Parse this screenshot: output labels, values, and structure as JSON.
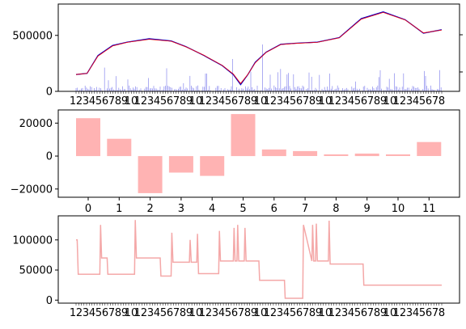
{
  "chart_data": [
    {
      "type": "line",
      "title": "",
      "xlabel": "",
      "ylabel": "",
      "ylim": [
        0,
        780000
      ],
      "y_ticks": [
        0,
        500000
      ],
      "x_tick_labels": [
        "1",
        "2",
        "3",
        "4",
        "5",
        "6",
        "7",
        "8",
        "9",
        "10"
      ],
      "series": [
        {
          "kind": "line",
          "color": "#0000cc",
          "x": [
            0,
            0.03,
            0.06,
            0.1,
            0.14,
            0.2,
            0.26,
            0.3,
            0.35,
            0.4,
            0.43,
            0.45,
            0.47,
            0.49,
            0.52,
            0.56,
            0.6,
            0.66,
            0.72,
            0.78,
            0.84,
            0.9,
            0.95,
            1.0
          ],
          "values": [
            150000,
            160000,
            320000,
            410000,
            440000,
            470000,
            450000,
            400000,
            320000,
            230000,
            150000,
            60000,
            150000,
            260000,
            350000,
            420000,
            430000,
            440000,
            480000,
            650000,
            710000,
            640000,
            520000,
            550000
          ]
        },
        {
          "kind": "line",
          "color": "#ff0000",
          "x": [
            0,
            0.03,
            0.06,
            0.1,
            0.14,
            0.2,
            0.26,
            0.3,
            0.35,
            0.4,
            0.43,
            0.45,
            0.47,
            0.49,
            0.52,
            0.56,
            0.6,
            0.66,
            0.72,
            0.78,
            0.84,
            0.9,
            0.95,
            1.0
          ],
          "values": [
            150000,
            160000,
            315000,
            405000,
            438000,
            465000,
            448000,
            398000,
            322000,
            232000,
            155000,
            70000,
            152000,
            255000,
            348000,
            418000,
            428000,
            438000,
            478000,
            645000,
            705000,
            638000,
            522000,
            548000
          ]
        }
      ],
      "volume_color": "#8888ee"
    },
    {
      "type": "bar",
      "title": "",
      "xlabel": "",
      "ylabel": "",
      "ylim": [
        -25000,
        28000
      ],
      "y_ticks": [
        -20000,
        0,
        20000
      ],
      "categories": [
        "0",
        "1",
        "2",
        "3",
        "4",
        "5",
        "6",
        "7",
        "8",
        "9",
        "10",
        "11"
      ],
      "values": [
        23000,
        10500,
        -22500,
        -10000,
        -12000,
        25500,
        4000,
        3000,
        1000,
        1500,
        1000,
        8500
      ],
      "color": "#ffb3b3"
    },
    {
      "type": "line",
      "title": "",
      "xlabel": "",
      "ylabel": "",
      "ylim": [
        -5000,
        140000
      ],
      "y_ticks": [
        0,
        50000,
        100000
      ],
      "x_tick_labels": [
        "1",
        "2",
        "3",
        "4",
        "5",
        "6",
        "7",
        "8",
        "9",
        "10"
      ],
      "color": "#f4a8a8",
      "x": [
        0,
        0.003,
        0.006,
        0.065,
        0.067,
        0.07,
        0.075,
        0.085,
        0.087,
        0.16,
        0.162,
        0.165,
        0.23,
        0.232,
        0.26,
        0.262,
        0.265,
        0.3,
        0.31,
        0.312,
        0.315,
        0.33,
        0.332,
        0.335,
        0.39,
        0.392,
        0.395,
        0.43,
        0.432,
        0.435,
        0.44,
        0.442,
        0.445,
        0.46,
        0.462,
        0.465,
        0.5,
        0.502,
        0.505,
        0.57,
        0.572,
        0.62,
        0.622,
        0.645,
        0.647,
        0.65,
        0.655,
        0.657,
        0.66,
        0.69,
        0.692,
        0.695,
        0.725,
        0.727,
        0.73,
        0.785,
        0.787,
        1.0
      ],
      "values": [
        100000,
        100000,
        43000,
        43000,
        125000,
        70000,
        70000,
        70000,
        43000,
        43000,
        133000,
        70000,
        70000,
        40000,
        40000,
        112000,
        63000,
        63000,
        63000,
        100000,
        63000,
        63000,
        110000,
        44000,
        44000,
        115000,
        65000,
        65000,
        120000,
        65000,
        65000,
        125000,
        65000,
        65000,
        120000,
        65000,
        65000,
        33000,
        33000,
        33000,
        3000,
        3000,
        125000,
        65000,
        125000,
        65000,
        65000,
        127000,
        65000,
        65000,
        132000,
        60000,
        60000,
        60000,
        60000,
        60000,
        25000,
        25000
      ]
    }
  ]
}
